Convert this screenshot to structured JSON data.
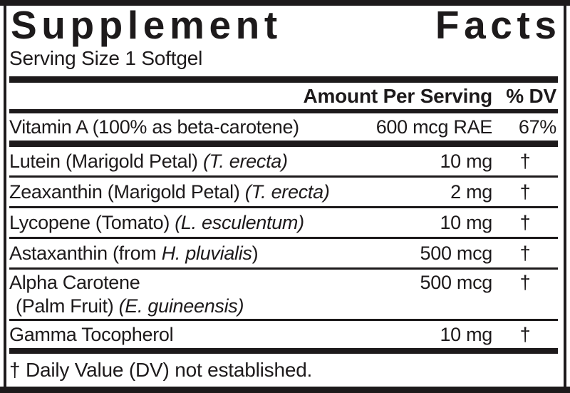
{
  "label": {
    "title": {
      "word1": "Supplement",
      "word2": "Facts"
    },
    "serving_size": "Serving Size 1 Softgel",
    "columns": {
      "amount_header": "Amount Per Serving",
      "dv_header": "% DV"
    },
    "rows": [
      {
        "name": [
          {
            "text": "Vitamin A (100% as beta-carotene)",
            "italic": false
          }
        ],
        "amount": "600 mcg RAE",
        "dv": "67%"
      },
      {
        "name": [
          {
            "text": "Lutein (Marigold Petal) ",
            "italic": false
          },
          {
            "text": "(T. erecta)",
            "italic": true
          }
        ],
        "amount": "10 mg",
        "dv": "†"
      },
      {
        "name": [
          {
            "text": "Zeaxanthin (Marigold Petal) ",
            "italic": false
          },
          {
            "text": "(T. erecta)",
            "italic": true
          }
        ],
        "amount": "2 mg",
        "dv": "†"
      },
      {
        "name": [
          {
            "text": "Lycopene (Tomato) ",
            "italic": false
          },
          {
            "text": "(L. esculentum)",
            "italic": true
          }
        ],
        "amount": "10 mg",
        "dv": "†"
      },
      {
        "name": [
          {
            "text": "Astaxanthin (from ",
            "italic": false
          },
          {
            "text": "H. pluvialis",
            "italic": true
          },
          {
            "text": ")",
            "italic": false
          }
        ],
        "amount": "500 mcg",
        "dv": "†"
      },
      {
        "name": [
          {
            "text": "Alpha Carotene",
            "italic": false
          }
        ],
        "name2": [
          {
            "text": "(Palm Fruit) ",
            "italic": false
          },
          {
            "text": "(E. guineensis)",
            "italic": true
          }
        ],
        "amount": "500 mcg",
        "dv": "†"
      },
      {
        "name": [
          {
            "text": "Gamma Tocopherol",
            "italic": false
          }
        ],
        "amount": "10 mg",
        "dv": "†"
      }
    ],
    "footnote": "† Daily Value (DV) not established.",
    "colors": {
      "ink": "#1d1a1b",
      "paper": "#ffffff"
    }
  }
}
